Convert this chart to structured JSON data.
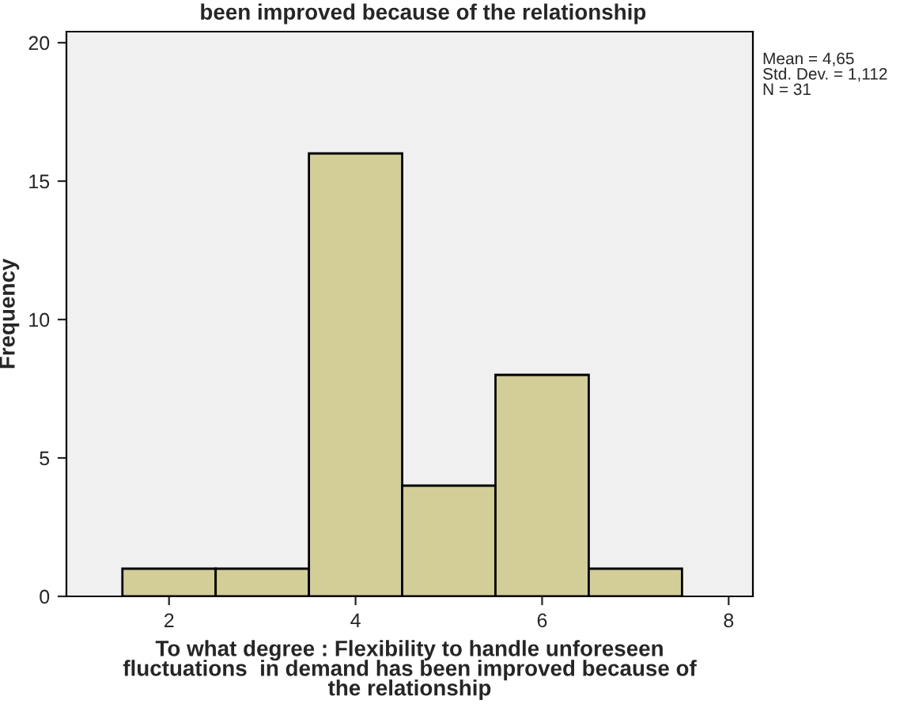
{
  "chart_data": {
    "type": "histogram",
    "title": "been improved because of the relationship",
    "xlabel": "To what degree : Flexibility to handle unforeseen\nfluctuations  in demand has been improved because of\nthe relationship",
    "ylabel": "Frequency",
    "bins": [
      1.5,
      2.5,
      3.5,
      4.5,
      5.5,
      6.5,
      7.5
    ],
    "values": [
      1,
      1,
      16,
      4,
      8,
      1
    ],
    "color": "#d3ce97",
    "xlim": [
      0.9,
      8.26
    ],
    "xticks": [
      2,
      4,
      6,
      8
    ],
    "ylim": [
      0,
      20.4
    ],
    "yticks": [
      0,
      5,
      10,
      15,
      20
    ],
    "annotations": [
      "Mean = 4,65\nStd. Dev. = 1,112\nN = 31"
    ],
    "grid": false,
    "legend": false
  }
}
